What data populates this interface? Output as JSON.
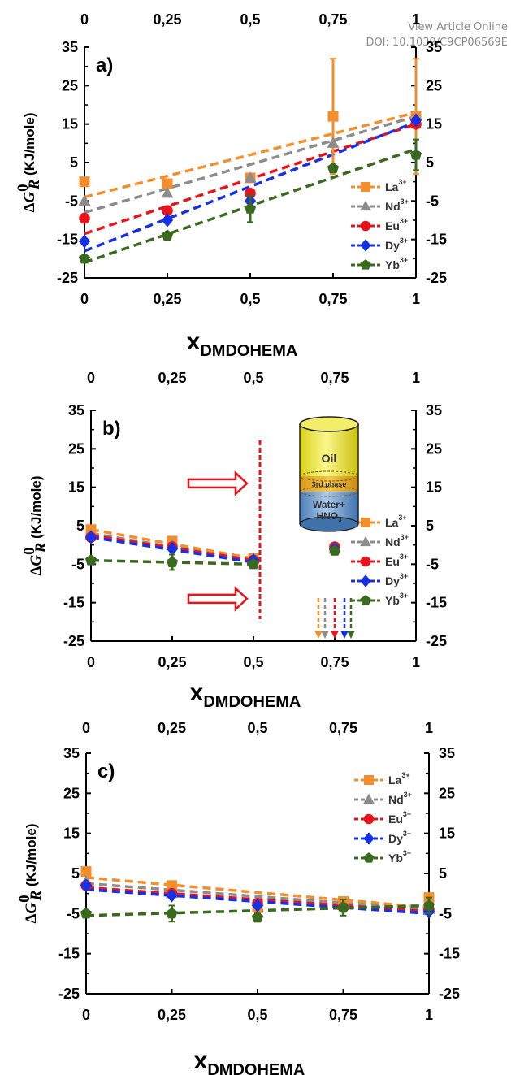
{
  "header": {
    "link_text": "View Article Online",
    "doi_text": "DOI: 10.1039/C9CP06569E"
  },
  "colors": {
    "La": "#F28E2B",
    "Nd": "#8C8C8C",
    "Eu": "#E8141B",
    "Dy": "#1630E6",
    "Yb": "#3A6A1F"
  },
  "inset": {
    "oil": "Oil",
    "third_phase": "3rd phase",
    "water": "Water+",
    "acid": "HNO",
    "acid_sub": "3"
  },
  "chart_data": [
    {
      "type": "scatter",
      "panel_label": "a)",
      "xlabel": "x",
      "xlabel_sub": "DMDOHEMA",
      "ylabel": "ΔG",
      "ylabel_sup": "0",
      "ylabel_sub": "R",
      "ylabel_unit": " (KJ/mole)",
      "xlim": [
        0,
        1
      ],
      "ylim": [
        -25,
        35
      ],
      "xticks": [
        0,
        0.25,
        0.5,
        0.75,
        1
      ],
      "xtick_labels": [
        "0",
        "0,25",
        "0,5",
        "0,75",
        "1"
      ],
      "yticks": [
        -25,
        -15,
        -5,
        5,
        15,
        25,
        35
      ],
      "ytick_labels": [
        "-25",
        "-15",
        "-5",
        "5",
        "15",
        "25",
        "35"
      ],
      "legend": "right-middle",
      "series": [
        {
          "name": "La",
          "ion_charge": "3+",
          "marker": "square",
          "x": [
            0,
            0.25,
            0.5,
            0.75,
            1
          ],
          "y": [
            0,
            -0.5,
            1,
            17,
            17
          ],
          "err": [
            0,
            0,
            0,
            15,
            15
          ],
          "fit": [
            [
              0,
              -4
            ],
            [
              1,
              18
            ]
          ]
        },
        {
          "name": "Nd",
          "ion_charge": "3+",
          "marker": "triangle",
          "x": [
            0,
            0.25,
            0.5,
            0.75,
            1
          ],
          "y": [
            -5,
            -3,
            1,
            10,
            15
          ],
          "err": [
            0,
            0,
            0,
            0,
            0
          ],
          "fit": [
            [
              0,
              -8
            ],
            [
              1,
              17
            ]
          ]
        },
        {
          "name": "Eu",
          "ion_charge": "3+",
          "marker": "circle",
          "x": [
            0,
            0.25,
            0.5,
            1
          ],
          "y": [
            -9.5,
            -7.5,
            -3,
            15
          ],
          "err": [
            0,
            0,
            0,
            0
          ],
          "fit": [
            [
              0,
              -13.5
            ],
            [
              1,
              15
            ]
          ]
        },
        {
          "name": "Dy",
          "ion_charge": "3+",
          "marker": "diamond",
          "x": [
            0,
            0.25,
            0.5,
            1
          ],
          "y": [
            -15.5,
            -10,
            -5,
            16
          ],
          "err": [
            0,
            0,
            0,
            0
          ],
          "fit": [
            [
              0,
              -18
            ],
            [
              1,
              15.5
            ]
          ]
        },
        {
          "name": "Yb",
          "ion_charge": "3+",
          "marker": "pentagon",
          "x": [
            0,
            0.25,
            0.5,
            0.75,
            1
          ],
          "y": [
            -20,
            -14,
            -7,
            3.5,
            7
          ],
          "err": [
            0,
            0,
            3.5,
            0,
            4
          ],
          "fit": [
            [
              0,
              -21
            ],
            [
              1,
              8.5
            ]
          ]
        }
      ]
    },
    {
      "type": "scatter",
      "panel_label": "b)",
      "xlabel": "x",
      "xlabel_sub": "DMDOHEMA",
      "ylabel": "ΔG",
      "ylabel_sup": "0",
      "ylabel_sub": "R",
      "ylabel_unit": " (KJ/mole)",
      "xlim": [
        0,
        1
      ],
      "ylim": [
        -25,
        35
      ],
      "xticks": [
        0,
        0.25,
        0.5,
        0.75,
        1
      ],
      "xtick_labels": [
        "0",
        "0,25",
        "0,5",
        "0,75",
        "1"
      ],
      "yticks": [
        -25,
        -15,
        -5,
        5,
        15,
        25,
        35
      ],
      "ytick_labels": [
        "-25",
        "-15",
        "-5",
        "5",
        "15",
        "25",
        "35"
      ],
      "legend": "right-bottom",
      "annotations": {
        "third_phase_limit_x": 0.52,
        "arrow_y": [
          16,
          -14
        ],
        "down_arrows_x": [
          0.7,
          0.72,
          0.75,
          0.78,
          0.8
        ]
      },
      "series": [
        {
          "name": "La",
          "ion_charge": "3+",
          "marker": "square",
          "x": [
            0,
            0.25,
            0.5,
            0.75
          ],
          "y": [
            4,
            1,
            -3.5,
            -1
          ],
          "err": [
            0,
            0,
            0,
            0
          ],
          "fit": [
            [
              0,
              4
            ],
            [
              0.5,
              -3.5
            ]
          ]
        },
        {
          "name": "Nd",
          "ion_charge": "3+",
          "marker": "triangle",
          "x": [
            0,
            0.25,
            0.5,
            0.75
          ],
          "y": [
            2.5,
            0,
            -3.5,
            -1
          ],
          "err": [
            0,
            0,
            0,
            0
          ],
          "fit": [
            [
              0,
              3
            ],
            [
              0.5,
              -4
            ]
          ]
        },
        {
          "name": "Eu",
          "ion_charge": "3+",
          "marker": "circle",
          "x": [
            0,
            0.25,
            0.5,
            0.75
          ],
          "y": [
            2,
            -0.5,
            -4,
            -0.5
          ],
          "err": [
            0,
            0,
            0,
            0
          ],
          "fit": [
            [
              0,
              2.5
            ],
            [
              0.5,
              -4
            ]
          ]
        },
        {
          "name": "Dy",
          "ion_charge": "3+",
          "marker": "diamond",
          "x": [
            0,
            0.25,
            0.5,
            0.75
          ],
          "y": [
            2,
            -1,
            -4,
            -1
          ],
          "err": [
            0,
            0,
            0,
            0
          ],
          "fit": [
            [
              0,
              2
            ],
            [
              0.5,
              -4.5
            ]
          ]
        },
        {
          "name": "Yb",
          "ion_charge": "3+",
          "marker": "pentagon",
          "x": [
            0,
            0.25,
            0.5,
            0.75
          ],
          "y": [
            -4,
            -4.5,
            -5,
            -1.5
          ],
          "err": [
            0,
            2,
            0,
            0
          ],
          "fit": [
            [
              0,
              -4
            ],
            [
              0.5,
              -5
            ]
          ]
        }
      ]
    },
    {
      "type": "scatter",
      "panel_label": "c)",
      "xlabel": "x",
      "xlabel_sub": "DMDOHEMA",
      "ylabel": "ΔG",
      "ylabel_sup": "0",
      "ylabel_sub": "R",
      "ylabel_unit": " (KJ/mole)",
      "xlim": [
        0,
        1
      ],
      "ylim": [
        -25,
        35
      ],
      "xticks": [
        0,
        0.25,
        0.5,
        0.75,
        1
      ],
      "xtick_labels": [
        "0",
        "0,25",
        "0,5",
        "0,75",
        "1"
      ],
      "yticks": [
        -25,
        -15,
        -5,
        5,
        15,
        25,
        35
      ],
      "ytick_labels": [
        "-25",
        "-15",
        "-5",
        "5",
        "15",
        "25",
        "35"
      ],
      "legend": "top-right",
      "series": [
        {
          "name": "La",
          "ion_charge": "3+",
          "marker": "square",
          "x": [
            0,
            0.25,
            0.5,
            0.75,
            1
          ],
          "y": [
            5.5,
            2,
            -3.5,
            -2,
            -1
          ],
          "err": [
            0,
            0,
            0,
            0,
            0
          ],
          "fit": [
            [
              0,
              4
            ],
            [
              1,
              -3.5
            ]
          ]
        },
        {
          "name": "Nd",
          "ion_charge": "3+",
          "marker": "triangle",
          "x": [
            0,
            0.25,
            0.5,
            0.75,
            1
          ],
          "y": [
            3,
            0,
            -2,
            -3,
            -4
          ],
          "err": [
            0,
            0,
            0,
            0,
            0
          ],
          "fit": [
            [
              0,
              2.5
            ],
            [
              1,
              -4
            ]
          ]
        },
        {
          "name": "Eu",
          "ion_charge": "3+",
          "marker": "circle",
          "x": [
            0,
            0.25,
            0.5,
            0.75,
            1
          ],
          "y": [
            2,
            0,
            -2.5,
            -3.5,
            -4
          ],
          "err": [
            0,
            0,
            0,
            0,
            0
          ],
          "fit": [
            [
              0,
              1.5
            ],
            [
              1,
              -4.5
            ]
          ]
        },
        {
          "name": "Dy",
          "ion_charge": "3+",
          "marker": "diamond",
          "x": [
            0,
            0.25,
            0.5,
            0.75,
            1
          ],
          "y": [
            2,
            -0.5,
            -3,
            -3.5,
            -4.5
          ],
          "err": [
            0,
            0,
            0,
            0,
            0
          ],
          "fit": [
            [
              0,
              1
            ],
            [
              1,
              -5
            ]
          ]
        },
        {
          "name": "Yb",
          "ion_charge": "3+",
          "marker": "pentagon",
          "x": [
            0,
            0.25,
            0.5,
            0.75,
            1
          ],
          "y": [
            -5,
            -5,
            -6,
            -3.5,
            -3
          ],
          "err": [
            0,
            2,
            1,
            2,
            2
          ],
          "fit": [
            [
              0,
              -5.5
            ],
            [
              1,
              -3
            ]
          ]
        }
      ]
    }
  ]
}
